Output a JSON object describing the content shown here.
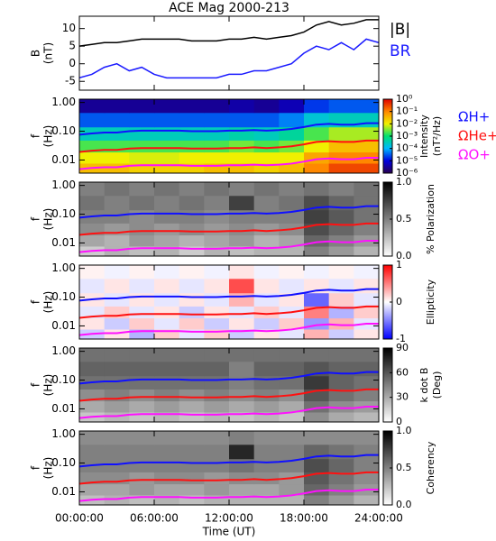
{
  "chart_data": [
    {
      "type": "line",
      "title": "ACE Mag 2000-213",
      "ylabel": [
        "B",
        "(nT)"
      ],
      "ylim": [
        -7.5,
        13.5
      ],
      "yticks": [
        -5,
        0,
        5,
        10
      ],
      "x": [
        0,
        1,
        2,
        3,
        4,
        5,
        6,
        7,
        8,
        9,
        10,
        11,
        12,
        13,
        14,
        15,
        16,
        17,
        18,
        19,
        20,
        21,
        22,
        23,
        24
      ],
      "series": [
        {
          "name": "|B|",
          "color": "#000000",
          "values": [
            5,
            5.5,
            6,
            6,
            6.5,
            7,
            7,
            7,
            7,
            6.5,
            6.5,
            6.5,
            7,
            7,
            7.5,
            7,
            7.5,
            8,
            9,
            11,
            12,
            11,
            11.5,
            12.5,
            12.5
          ]
        },
        {
          "name": "BR",
          "color": "#1a1aff",
          "values": [
            -4,
            -3,
            -1,
            0,
            -2,
            -1,
            -3,
            -4,
            -4,
            -4,
            -4,
            -4,
            -3,
            -3,
            -2,
            -2,
            -1,
            0,
            3,
            5,
            4,
            6,
            4,
            7,
            6
          ]
        }
      ]
    },
    {
      "type": "heatmap",
      "ylabel": [
        "f",
        "(Hz)"
      ],
      "yscale": "log",
      "ylim": [
        0.0035,
        1.3
      ],
      "yticks": [
        {
          "value": 1,
          "label": "1.00"
        },
        {
          "value": 0.1,
          "label": "0.10"
        },
        0.01
      ],
      "x": [
        1,
        3,
        5,
        7,
        9,
        11,
        13,
        15,
        17,
        19,
        21,
        23
      ],
      "y": [
        0.005,
        0.012,
        0.03,
        0.08,
        0.25,
        0.8
      ],
      "z": [
        [
          0.03,
          0.03,
          0.02,
          0.02,
          0.02,
          0.03,
          0.03,
          0.02,
          0.03,
          0.1,
          0.3,
          0.3
        ],
        [
          0.01,
          0.01,
          0.008,
          0.008,
          0.01,
          0.01,
          0.01,
          0.01,
          0.01,
          0.05,
          0.1,
          0.1
        ],
        [
          0.002,
          0.002,
          0.002,
          0.002,
          0.002,
          0.002,
          0.003,
          0.002,
          0.003,
          0.01,
          0.03,
          0.03
        ],
        [
          0.0003,
          0.0003,
          0.0003,
          0.0003,
          0.0003,
          0.0003,
          0.0004,
          0.0003,
          0.0005,
          0.002,
          0.005,
          0.005
        ],
        [
          3e-05,
          3e-05,
          3e-05,
          3e-05,
          3e-05,
          3e-05,
          3e-05,
          3e-05,
          5e-05,
          0.0002,
          0.0003,
          0.0003
        ],
        [
          3e-06,
          3e-06,
          3e-06,
          3e-06,
          3e-06,
          3e-06,
          4e-06,
          3e-06,
          5e-06,
          2e-05,
          3e-05,
          3e-05
        ]
      ],
      "colorbar": {
        "label": [
          "Intensity",
          "(nT²/Hz)"
        ],
        "scale": "log",
        "lim": [
          1e-06,
          1
        ],
        "ticks": [
          {
            "value": 1,
            "label": "10⁰"
          },
          {
            "value": 0.1,
            "label": "10⁻¹"
          },
          {
            "value": 0.01,
            "label": "10⁻²"
          },
          {
            "value": 0.001,
            "label": "10⁻³"
          },
          {
            "value": 0.0001,
            "label": "10⁻⁴"
          },
          {
            "value": 1e-05,
            "label": "10⁻⁵"
          },
          {
            "value": 1e-06,
            "label": "10⁻⁶"
          }
        ],
        "colors": [
          "#2a0050",
          "#0000e0",
          "#00b8ff",
          "#00e070",
          "#f0f000",
          "#ff8800",
          "#e00000"
        ]
      },
      "lines": {
        "x": [
          0,
          1,
          2,
          3,
          4,
          5,
          6,
          7,
          8,
          9,
          10,
          11,
          12,
          13,
          14,
          15,
          16,
          17,
          18,
          19,
          20,
          21,
          22,
          23,
          24
        ],
        "series": [
          {
            "name": "ΩH+",
            "color": "#1010ff",
            "values": [
              0.076,
              0.084,
              0.09,
              0.09,
              0.1,
              0.105,
              0.105,
              0.105,
              0.105,
              0.1,
              0.1,
              0.1,
              0.105,
              0.105,
              0.11,
              0.105,
              0.11,
              0.12,
              0.14,
              0.17,
              0.18,
              0.17,
              0.17,
              0.19,
              0.19
            ]
          },
          {
            "name": "ΩHe+",
            "color": "#ff1010",
            "values": [
              0.019,
              0.021,
              0.0225,
              0.0225,
              0.025,
              0.026,
              0.026,
              0.026,
              0.026,
              0.025,
              0.025,
              0.025,
              0.026,
              0.026,
              0.0275,
              0.026,
              0.0275,
              0.03,
              0.035,
              0.0425,
              0.045,
              0.0425,
              0.0425,
              0.0475,
              0.0475
            ]
          },
          {
            "name": "ΩO+",
            "color": "#ff10ff",
            "values": [
              0.0048,
              0.0053,
              0.0056,
              0.0056,
              0.0063,
              0.0066,
              0.0066,
              0.0066,
              0.0066,
              0.0063,
              0.0063,
              0.0063,
              0.0066,
              0.0066,
              0.0069,
              0.0066,
              0.0069,
              0.0075,
              0.0088,
              0.0106,
              0.0113,
              0.0106,
              0.0106,
              0.0119,
              0.0119
            ]
          }
        ]
      }
    },
    {
      "type": "heatmap",
      "ylabel": [
        "f",
        "(Hz)"
      ],
      "yscale": "log",
      "ylim": [
        0.0035,
        1.3
      ],
      "yticks": [
        {
          "value": 1,
          "label": "1.00"
        },
        {
          "value": 0.1,
          "label": "0.10"
        },
        0.01
      ],
      "x": [
        1,
        3,
        5,
        7,
        9,
        11,
        13,
        15,
        17,
        19,
        21,
        23
      ],
      "y": [
        0.005,
        0.012,
        0.03,
        0.08,
        0.25,
        0.8
      ],
      "z": [
        [
          0.2,
          0.3,
          0.25,
          0.3,
          0.2,
          0.3,
          0.25,
          0.3,
          0.3,
          0.5,
          0.4,
          0.3
        ],
        [
          0.35,
          0.3,
          0.4,
          0.35,
          0.3,
          0.35,
          0.4,
          0.3,
          0.35,
          0.6,
          0.5,
          0.4
        ],
        [
          0.45,
          0.4,
          0.45,
          0.4,
          0.45,
          0.4,
          0.45,
          0.4,
          0.45,
          0.7,
          0.6,
          0.5
        ],
        [
          0.5,
          0.5,
          0.45,
          0.5,
          0.5,
          0.45,
          0.5,
          0.5,
          0.5,
          0.75,
          0.65,
          0.55
        ],
        [
          0.55,
          0.5,
          0.55,
          0.5,
          0.55,
          0.5,
          0.75,
          0.5,
          0.55,
          0.7,
          0.6,
          0.55
        ],
        [
          0.5,
          0.55,
          0.5,
          0.55,
          0.5,
          0.55,
          0.5,
          0.55,
          0.5,
          0.55,
          0.5,
          0.55
        ]
      ],
      "colorbar": {
        "label": [
          "% Polarization"
        ],
        "scale": "linear",
        "lim": [
          0,
          1
        ],
        "ticks": [
          {
            "value": 1,
            "label": "1.0"
          },
          0.5,
          {
            "value": 0,
            "label": "0.0"
          }
        ],
        "colors": [
          "#ffffff",
          "#000000"
        ]
      }
    },
    {
      "type": "heatmap",
      "ylabel": [
        "f",
        "(Hz)"
      ],
      "yscale": "log",
      "ylim": [
        0.0035,
        1.3
      ],
      "yticks": [
        {
          "value": 1,
          "label": "1.00"
        },
        {
          "value": 0.1,
          "label": "0.10"
        },
        0.01
      ],
      "x": [
        1,
        3,
        5,
        7,
        9,
        11,
        13,
        15,
        17,
        19,
        21,
        23
      ],
      "y": [
        0.005,
        0.012,
        0.03,
        0.08,
        0.25,
        0.8
      ],
      "z": [
        [
          -0.2,
          0.1,
          -0.3,
          0.2,
          -0.1,
          0.2,
          -0.2,
          0.1,
          -0.1,
          0.3,
          -0.2,
          0.1
        ],
        [
          0.1,
          -0.2,
          0.2,
          -0.1,
          0.2,
          -0.2,
          0.1,
          -0.2,
          0.2,
          -0.4,
          0.3,
          -0.1
        ],
        [
          -0.1,
          0.2,
          -0.1,
          0.1,
          -0.2,
          0.1,
          -0.1,
          0.2,
          -0.1,
          0.5,
          -0.3,
          0.2
        ],
        [
          0.1,
          -0.1,
          0.1,
          -0.1,
          0.1,
          -0.1,
          0.3,
          -0.1,
          0.1,
          -0.6,
          0.2,
          -0.1
        ],
        [
          -0.1,
          0.1,
          -0.1,
          0.1,
          -0.1,
          0.1,
          0.7,
          0.1,
          -0.1,
          0.1,
          -0.1,
          0.1
        ],
        [
          0.05,
          -0.05,
          0.05,
          -0.05,
          0.05,
          -0.05,
          0.1,
          -0.05,
          0.05,
          -0.05,
          0.05,
          -0.05
        ]
      ],
      "colorbar": {
        "label": [
          "Ellipticity"
        ],
        "scale": "linear",
        "lim": [
          -1,
          1
        ],
        "ticks": [
          1,
          0,
          -1
        ],
        "colors": [
          "#0000ff",
          "#ffffff",
          "#ff0000"
        ]
      }
    },
    {
      "type": "heatmap",
      "ylabel": [
        "f",
        "(Hz)"
      ],
      "yscale": "log",
      "ylim": [
        0.0035,
        1.3
      ],
      "yticks": [
        {
          "value": 1,
          "label": "1.00"
        },
        {
          "value": 0.1,
          "label": "0.10"
        },
        0.01
      ],
      "x": [
        1,
        3,
        5,
        7,
        9,
        11,
        13,
        15,
        17,
        19,
        21,
        23
      ],
      "y": [
        0.005,
        0.012,
        0.03,
        0.08,
        0.25,
        0.8
      ],
      "z": [
        [
          20,
          25,
          20,
          25,
          20,
          25,
          20,
          25,
          20,
          40,
          30,
          25
        ],
        [
          30,
          35,
          30,
          35,
          30,
          35,
          30,
          35,
          30,
          50,
          40,
          35
        ],
        [
          40,
          45,
          40,
          45,
          40,
          45,
          40,
          45,
          40,
          60,
          50,
          45
        ],
        [
          50,
          50,
          50,
          50,
          50,
          50,
          45,
          50,
          50,
          70,
          55,
          50
        ],
        [
          55,
          55,
          55,
          55,
          55,
          55,
          45,
          55,
          55,
          60,
          55,
          55
        ],
        [
          50,
          50,
          50,
          50,
          50,
          50,
          50,
          50,
          50,
          50,
          50,
          50
        ]
      ],
      "colorbar": {
        "label": [
          "k dot B",
          "(Deg)"
        ],
        "scale": "linear",
        "lim": [
          0,
          90
        ],
        "ticks": [
          90,
          60,
          30,
          0
        ],
        "colors": [
          "#ffffff",
          "#000000"
        ]
      }
    },
    {
      "type": "heatmap",
      "ylabel": [
        "f",
        "(Hz)"
      ],
      "yscale": "log",
      "ylim": [
        0.0035,
        1.3
      ],
      "yticks": [
        {
          "value": 1,
          "label": "1.00"
        },
        {
          "value": 0.1,
          "label": "0.10"
        },
        0.01
      ],
      "x": [
        1,
        3,
        5,
        7,
        9,
        11,
        13,
        15,
        17,
        19,
        21,
        23
      ],
      "y": [
        0.005,
        0.012,
        0.03,
        0.08,
        0.25,
        0.8
      ],
      "z": [
        [
          0.25,
          0.3,
          0.25,
          0.3,
          0.25,
          0.3,
          0.3,
          0.3,
          0.3,
          0.5,
          0.4,
          0.3
        ],
        [
          0.35,
          0.35,
          0.4,
          0.35,
          0.35,
          0.4,
          0.35,
          0.35,
          0.4,
          0.6,
          0.5,
          0.4
        ],
        [
          0.45,
          0.45,
          0.4,
          0.45,
          0.45,
          0.4,
          0.45,
          0.45,
          0.4,
          0.65,
          0.55,
          0.45
        ],
        [
          0.5,
          0.5,
          0.5,
          0.5,
          0.5,
          0.5,
          0.55,
          0.5,
          0.5,
          0.7,
          0.6,
          0.5
        ],
        [
          0.5,
          0.5,
          0.5,
          0.5,
          0.5,
          0.5,
          0.85,
          0.5,
          0.5,
          0.6,
          0.55,
          0.5
        ],
        [
          0.45,
          0.45,
          0.45,
          0.45,
          0.45,
          0.45,
          0.5,
          0.45,
          0.45,
          0.45,
          0.45,
          0.45
        ]
      ],
      "colorbar": {
        "label": [
          "Coherency"
        ],
        "scale": "linear",
        "lim": [
          0,
          1
        ],
        "ticks": [
          {
            "value": 1,
            "label": "1.0"
          },
          0.5,
          {
            "value": 0,
            "label": "0.0"
          }
        ],
        "colors": [
          "#ffffff",
          "#000000"
        ]
      },
      "xlim": [
        0,
        24
      ],
      "xticks": [
        {
          "value": 0,
          "label": "00:00:00"
        },
        {
          "value": 6,
          "label": "06:00:00"
        },
        {
          "value": 12,
          "label": "12:00:00"
        },
        {
          "value": 18,
          "label": "18:00:00"
        },
        {
          "value": 24,
          "label": "24:00:00"
        }
      ],
      "xlabel": "Time (UT)"
    }
  ]
}
